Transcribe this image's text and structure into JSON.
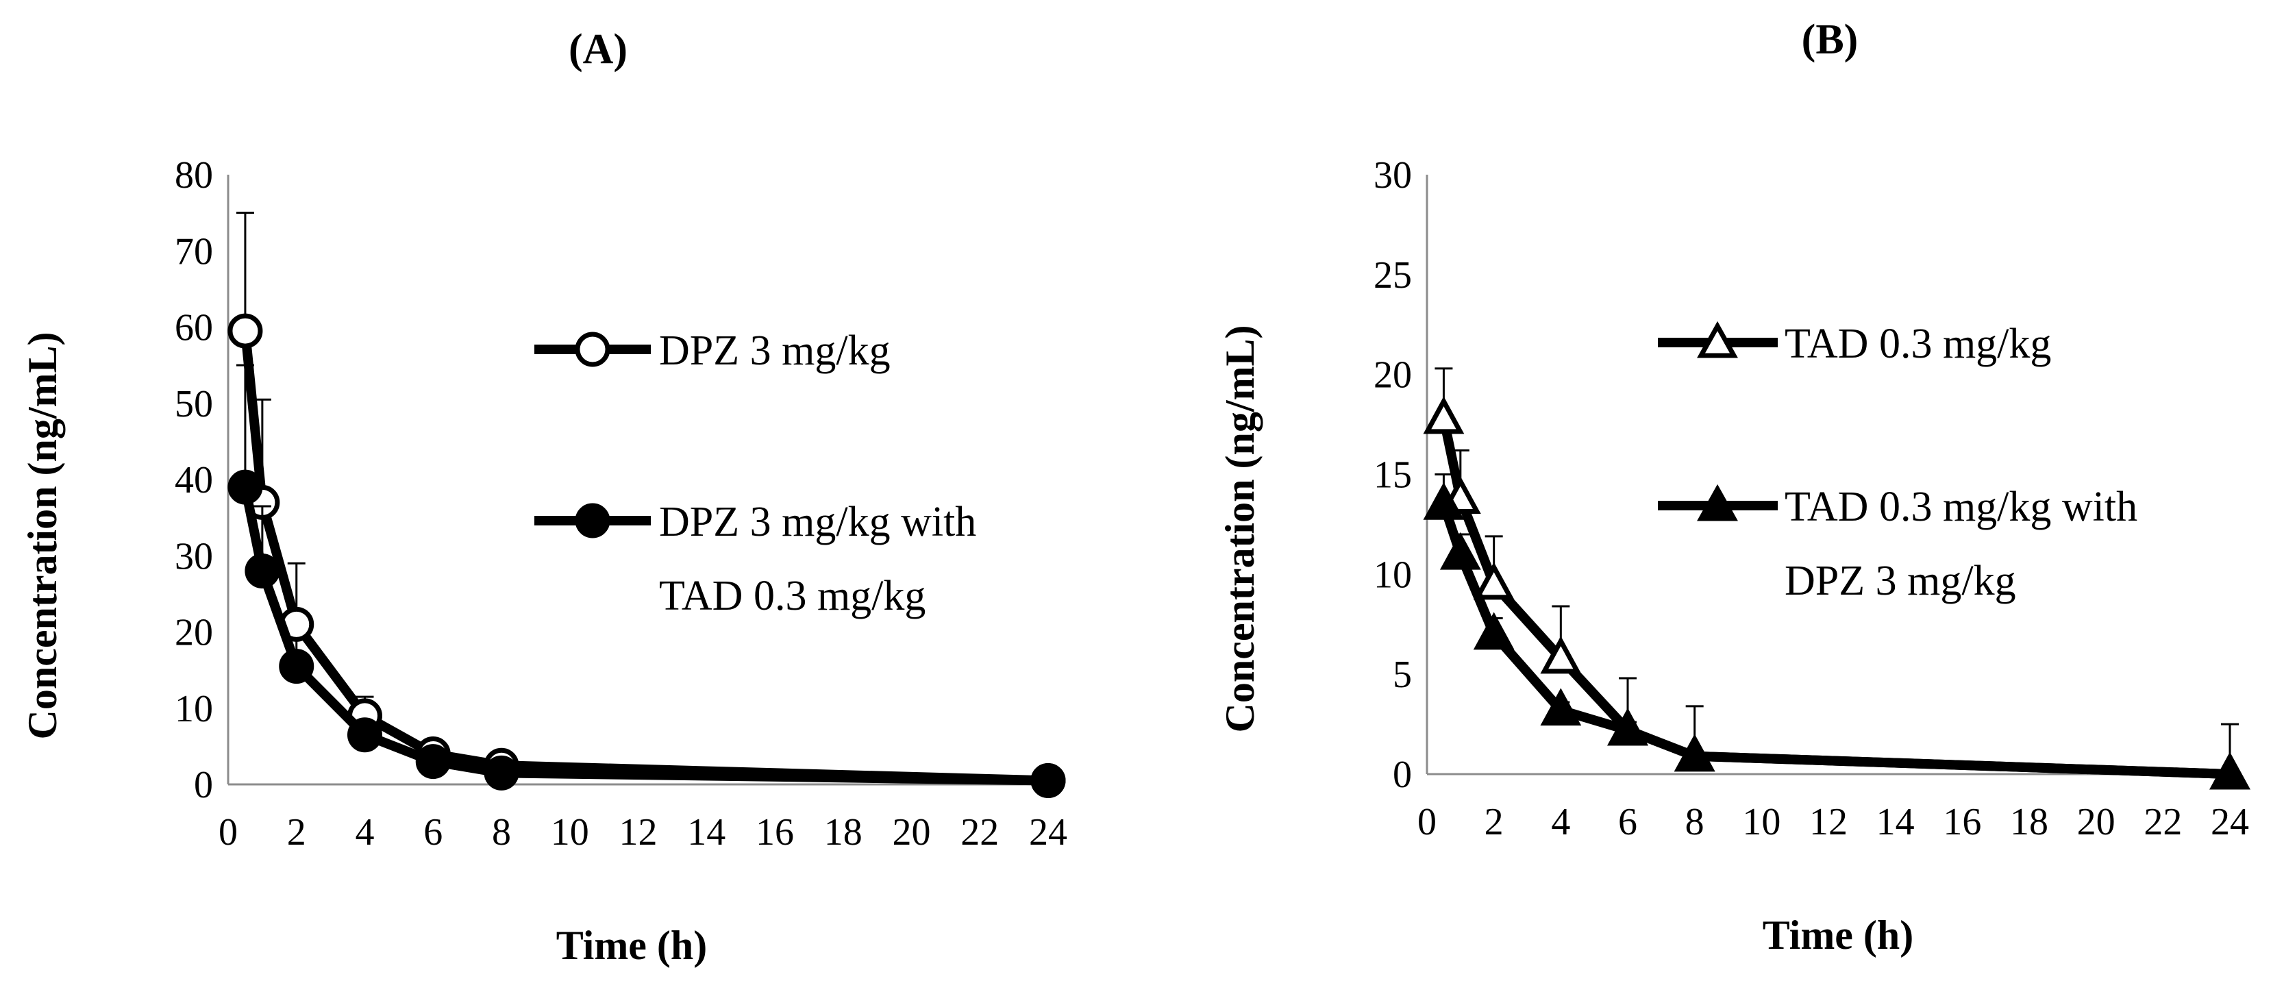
{
  "chart_data": [
    {
      "panel": "A",
      "title": "(A)",
      "type": "line",
      "xlabel": "Time (h)",
      "ylabel": "Concentration (ng/mL)",
      "xlim": [
        0,
        24
      ],
      "ylim": [
        0,
        80
      ],
      "xticks": [
        0,
        2,
        4,
        6,
        8,
        10,
        12,
        14,
        16,
        18,
        20,
        22,
        24
      ],
      "yticks": [
        0,
        10,
        20,
        30,
        40,
        50,
        60,
        70,
        80
      ],
      "grid": false,
      "legend_position": "right",
      "series": [
        {
          "name": "DPZ 3 mg/kg",
          "marker": "open-circle",
          "x": [
            0.5,
            1,
            2,
            4,
            6,
            8,
            24
          ],
          "y": [
            59.5,
            37.0,
            21.0,
            9.0,
            4.0,
            2.5,
            0.5
          ],
          "err": [
            15.5,
            13.5,
            8.0,
            2.5,
            0.5,
            0.3,
            0.2
          ]
        },
        {
          "name": "DPZ 3 mg/kg with TAD 0.3 mg/kg",
          "legend_lines": [
            "DPZ 3 mg/kg with",
            "TAD 0.3 mg/kg"
          ],
          "marker": "filled-circle",
          "x": [
            0.5,
            1,
            2,
            4,
            6,
            8,
            24
          ],
          "y": [
            39.0,
            28.0,
            15.5,
            6.5,
            3.0,
            1.5,
            0.5
          ],
          "err": [
            16.0,
            8.5,
            3.5,
            1.0,
            0.4,
            0.2,
            0.1
          ]
        }
      ]
    },
    {
      "panel": "B",
      "title": "(B)",
      "type": "line",
      "xlabel": "Time (h)",
      "ylabel": "Concentration (ng/mL)",
      "xlim": [
        0,
        24
      ],
      "ylim": [
        0,
        30
      ],
      "xticks": [
        0,
        2,
        4,
        6,
        8,
        10,
        12,
        14,
        16,
        18,
        20,
        22,
        24
      ],
      "yticks": [
        0,
        5,
        10,
        15,
        20,
        25,
        30
      ],
      "grid": false,
      "legend_position": "right",
      "series": [
        {
          "name": "TAD 0.3 mg/kg",
          "marker": "open-triangle",
          "x": [
            0.5,
            1,
            2,
            4,
            6,
            8,
            24
          ],
          "y": [
            17.8,
            13.8,
            9.5,
            5.8,
            2.2,
            0.9,
            0.0
          ],
          "err": [
            2.5,
            2.4,
            2.4,
            2.6,
            2.6,
            2.5,
            2.5
          ]
        },
        {
          "name": "TAD 0.3 mg/kg with DPZ 3 mg/kg",
          "legend_lines": [
            "TAD 0.3 mg/kg with",
            "DPZ 3 mg/kg"
          ],
          "marker": "filled-triangle",
          "x": [
            0.5,
            1,
            2,
            4,
            6,
            8,
            24
          ],
          "y": [
            13.5,
            11.0,
            7.0,
            3.2,
            2.2,
            0.9,
            0.0
          ],
          "err": [
            1.5,
            1.0,
            0.8,
            0.4,
            0.4,
            0.2,
            0.1
          ]
        }
      ]
    }
  ]
}
